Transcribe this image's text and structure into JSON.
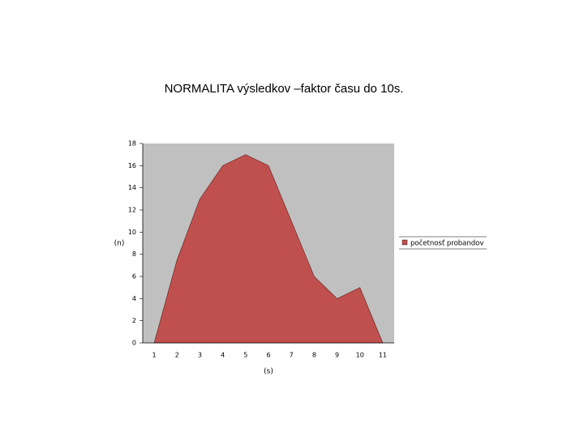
{
  "chart_data": {
    "type": "area",
    "title": "NORMALITA výsledkov –faktor času do 10s.",
    "y_label": "(n)",
    "x_label": "(s)",
    "categories": [
      "1",
      "2",
      "3",
      "4",
      "5",
      "6",
      "7",
      "8",
      "9",
      "10",
      "11"
    ],
    "series": [
      {
        "name": "početnosť probandov",
        "color": "#c0504d",
        "values": [
          0,
          7.5,
          13,
          16,
          17,
          16,
          11,
          6,
          4,
          5,
          0
        ]
      }
    ],
    "ylim": [
      0,
      18
    ],
    "yticks": [
      0,
      2,
      4,
      6,
      8,
      10,
      12,
      14,
      16,
      18
    ],
    "legend": "right",
    "plot_background": "#c0c0c0"
  }
}
